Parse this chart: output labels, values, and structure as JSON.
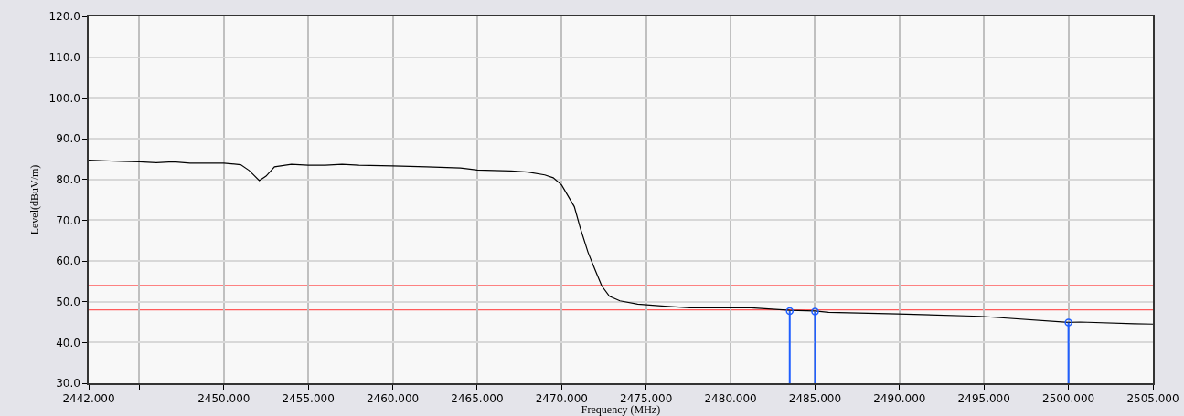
{
  "chart_data": {
    "type": "line",
    "xlabel": "Frequency (MHz)",
    "ylabel": "Level(dBuV/m)",
    "xlim": [
      2442,
      2505
    ],
    "xticks": [
      {
        "value": 2442,
        "label": "2442.000"
      },
      {
        "value": 2445,
        "label": null
      },
      {
        "value": 2450,
        "label": "2450.000"
      },
      {
        "value": 2455,
        "label": "2455.000"
      },
      {
        "value": 2460,
        "label": "2460.000"
      },
      {
        "value": 2465,
        "label": "2465.000"
      },
      {
        "value": 2470,
        "label": "2470.000"
      },
      {
        "value": 2475,
        "label": "2475.000"
      },
      {
        "value": 2480,
        "label": "2480.000"
      },
      {
        "value": 2485,
        "label": "2485.000"
      },
      {
        "value": 2490,
        "label": "2490.000"
      },
      {
        "value": 2495,
        "label": "2495.000"
      },
      {
        "value": 2500,
        "label": "2500.000"
      },
      {
        "value": 2505,
        "label": "2505.000"
      }
    ],
    "ylim": [
      30,
      120
    ],
    "yticks": [
      {
        "value": 30,
        "label": "30.0"
      },
      {
        "value": 40,
        "label": "40.0"
      },
      {
        "value": 50,
        "label": "50.0"
      },
      {
        "value": 60,
        "label": "60.0"
      },
      {
        "value": 70,
        "label": "70.0"
      },
      {
        "value": 80,
        "label": "80.0"
      },
      {
        "value": 90,
        "label": "90.0"
      },
      {
        "value": 100,
        "label": "100.0"
      },
      {
        "value": 110,
        "label": "110.0"
      },
      {
        "value": 120,
        "label": "120.0"
      }
    ],
    "grid": true,
    "series": [
      {
        "color": "#000000",
        "marker": "none",
        "line_style": "solid",
        "x": [
          2442,
          2444,
          2445,
          2446,
          2447,
          2448,
          2450,
          2451,
          2451.5,
          2452.1,
          2452.5,
          2453,
          2454,
          2455,
          2456,
          2457,
          2458,
          2460,
          2462,
          2464,
          2465,
          2467,
          2468,
          2469,
          2469.5,
          2470,
          2470.75,
          2471.1,
          2471.56,
          2472,
          2472.37,
          2472.83,
          2473.45,
          2474.5,
          2476.1,
          2477.6,
          2479.9,
          2481.2,
          2483.5,
          2485,
          2485.8,
          2489.9,
          2494.8,
          2500,
          2500.7,
          2503.9,
          2505
        ],
        "values": [
          84.7,
          84.4,
          84.3,
          84.1,
          84.3,
          84.0,
          84.0,
          83.6,
          82.2,
          79.7,
          80.8,
          83.1,
          83.7,
          83.5,
          83.5,
          83.7,
          83.5,
          83.3,
          83.1,
          82.8,
          82.3,
          82.1,
          81.8,
          81.1,
          80.4,
          78.6,
          73.3,
          68.1,
          62.1,
          57.6,
          53.9,
          51.3,
          50.2,
          49.4,
          48.9,
          48.5,
          48.5,
          48.5,
          47.9,
          47.7,
          47.4,
          47.0,
          46.4,
          44.9,
          45.0,
          44.6,
          44.5
        ]
      },
      {
        "type": "lollipop",
        "color": "#1f5fff",
        "marker": "circle",
        "x": [
          2483.5,
          2485,
          2500
        ],
        "values": [
          47.7,
          47.6,
          44.9
        ]
      }
    ],
    "ref_lines": [
      {
        "axis": "y",
        "value": 54,
        "color": "#ff5a5a",
        "line_style": "solid"
      },
      {
        "axis": "y",
        "value": 48,
        "color": "#ff5a5a",
        "line_style": "solid"
      }
    ]
  }
}
